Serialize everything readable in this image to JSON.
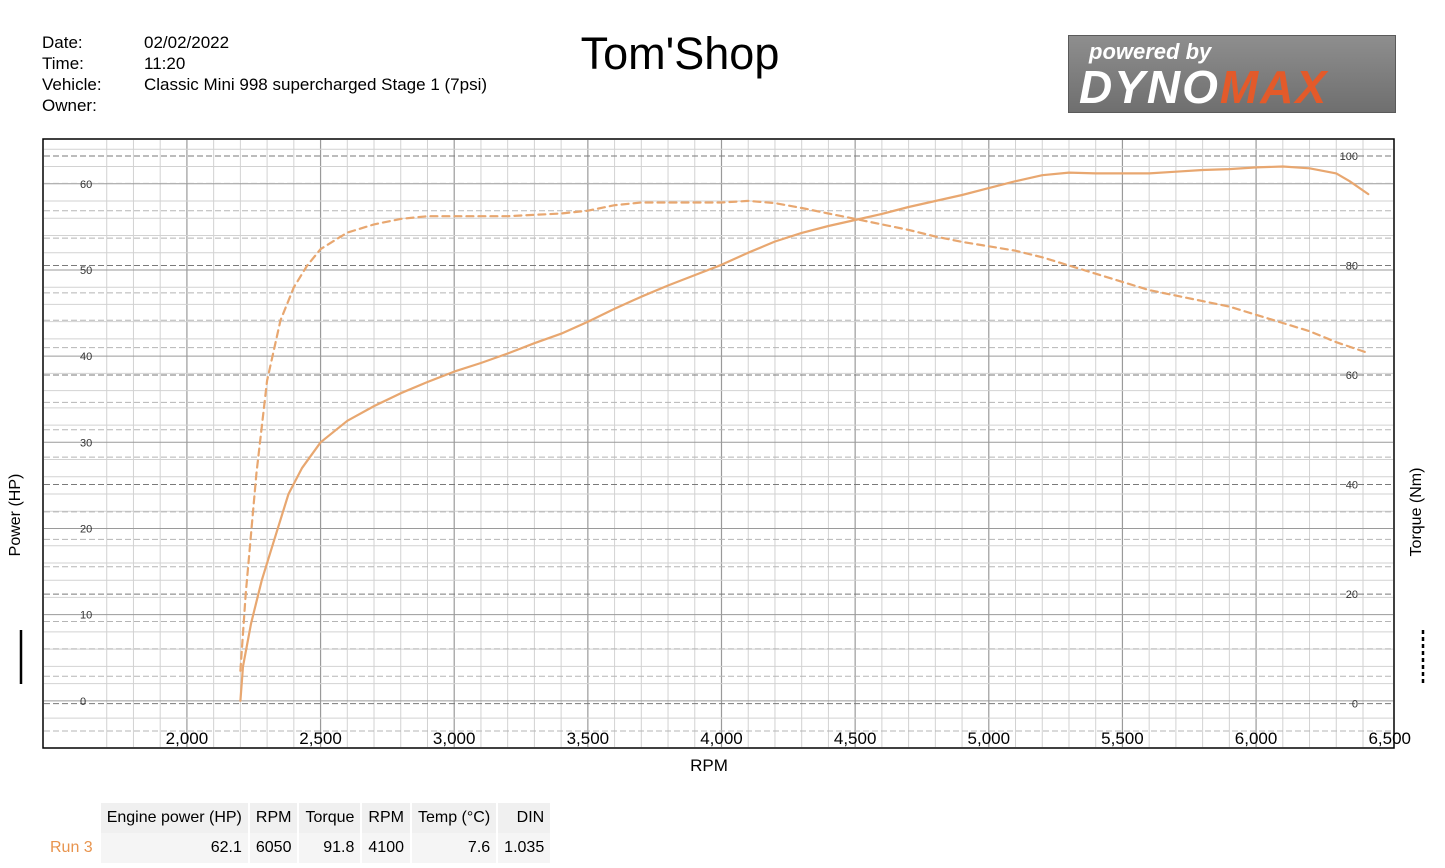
{
  "header": {
    "fields": [
      {
        "label": "Date:",
        "value": "02/02/2022"
      },
      {
        "label": "Time:",
        "value": "11:20"
      },
      {
        "label": "Vehicle:",
        "value": "Classic Mini 998 supercharged Stage 1 (7psi)"
      },
      {
        "label": "Owner:",
        "value": ""
      }
    ],
    "title": "Tom'Shop",
    "logo_top": "powered by",
    "logo_main_a": "DYNO",
    "logo_main_b": "MAX"
  },
  "colors": {
    "curve": "#e8a770",
    "grid_major": "#9a9a9a",
    "grid_minor": "#d2d2d2",
    "accent": "#e35a2a"
  },
  "chart_data": {
    "type": "line",
    "title": "Tom'Shop",
    "xlabel": "RPM",
    "ylabel_left": "Power (HP)",
    "ylabel_right": "Torque (Nm)",
    "xlim": [
      1600,
      6400
    ],
    "ylim_left": [
      -3.5,
      64.5
    ],
    "ylim_right": [
      -5,
      102
    ],
    "x_ticks": [
      2000,
      2500,
      3000,
      3500,
      4000,
      4500,
      5000,
      5500,
      6000,
      6500
    ],
    "x_tick_labels": [
      "2,000",
      "2,500",
      "3,000",
      "3,500",
      "4,000",
      "4,500",
      "5,000",
      "5,500",
      "6,000",
      "6,500"
    ],
    "y_left_ticks": [
      0,
      10,
      20,
      30,
      40,
      50,
      60
    ],
    "y_left_tick_labels": [
      "0",
      "10",
      "20",
      "30",
      "40",
      "50",
      "60"
    ],
    "y_right_ticks": [
      0,
      20,
      40,
      60,
      80,
      100
    ],
    "y_right_tick_labels": [
      "0",
      "20",
      "40",
      "60",
      "80",
      "100"
    ],
    "grid": true,
    "series": [
      {
        "name": "Power",
        "axis": "left",
        "style": "solid",
        "x": [
          2200,
          2210,
          2240,
          2280,
          2330,
          2380,
          2430,
          2500,
          2600,
          2700,
          2800,
          2900,
          3000,
          3100,
          3200,
          3300,
          3400,
          3500,
          3600,
          3700,
          3800,
          3900,
          4000,
          4100,
          4200,
          4300,
          4400,
          4500,
          4600,
          4700,
          4800,
          4900,
          5000,
          5100,
          5200,
          5300,
          5400,
          5500,
          5600,
          5700,
          5800,
          5900,
          6000,
          6100,
          6200,
          6300,
          6350,
          6420
        ],
        "y": [
          0,
          4,
          9,
          14,
          19,
          24,
          27,
          30,
          32.5,
          34.2,
          35.7,
          37,
          38.2,
          39.2,
          40.3,
          41.5,
          42.6,
          44,
          45.5,
          46.9,
          48.2,
          49.4,
          50.6,
          52,
          53.3,
          54.3,
          55.1,
          55.8,
          56.5,
          57.3,
          58,
          58.7,
          59.5,
          60.3,
          61,
          61.3,
          61.2,
          61.2,
          61.2,
          61.4,
          61.6,
          61.7,
          61.9,
          62,
          61.8,
          61.2,
          60.3,
          58.8
        ]
      },
      {
        "name": "Torque",
        "axis": "right",
        "style": "dashed",
        "x": [
          2200,
          2220,
          2260,
          2300,
          2350,
          2400,
          2450,
          2500,
          2600,
          2700,
          2800,
          2900,
          3000,
          3200,
          3400,
          3500,
          3600,
          3700,
          3800,
          3900,
          4000,
          4100,
          4200,
          4300,
          4400,
          4500,
          4600,
          4700,
          4800,
          4900,
          5000,
          5100,
          5200,
          5300,
          5400,
          5500,
          5600,
          5700,
          5800,
          5900,
          6000,
          6100,
          6200,
          6300,
          6420
        ],
        "y": [
          6,
          20,
          42,
          59,
          70,
          76,
          80,
          83,
          86,
          87.5,
          88.5,
          89,
          89,
          89,
          89.5,
          90,
          91,
          91.5,
          91.5,
          91.5,
          91.5,
          91.8,
          91.4,
          90.5,
          89.5,
          88.5,
          87.5,
          86.5,
          85.3,
          84.3,
          83.5,
          82.7,
          81.5,
          80,
          78.5,
          77,
          75.5,
          74.5,
          73.5,
          72.5,
          71,
          69.5,
          68,
          66,
          64
        ]
      }
    ],
    "legend_markers": [
      {
        "series": "Power",
        "style": "solid",
        "placement": "left"
      },
      {
        "series": "Torque",
        "style": "dashed",
        "placement": "right"
      }
    ]
  },
  "results": {
    "headers": [
      "Engine power (HP)",
      "RPM",
      "Torque",
      "RPM",
      "Temp (°C)",
      "DIN"
    ],
    "rows": [
      {
        "label": "Run 3",
        "cells": [
          "62.1",
          "6050",
          "91.8",
          "4100",
          "7.6",
          "1.035"
        ]
      }
    ]
  }
}
